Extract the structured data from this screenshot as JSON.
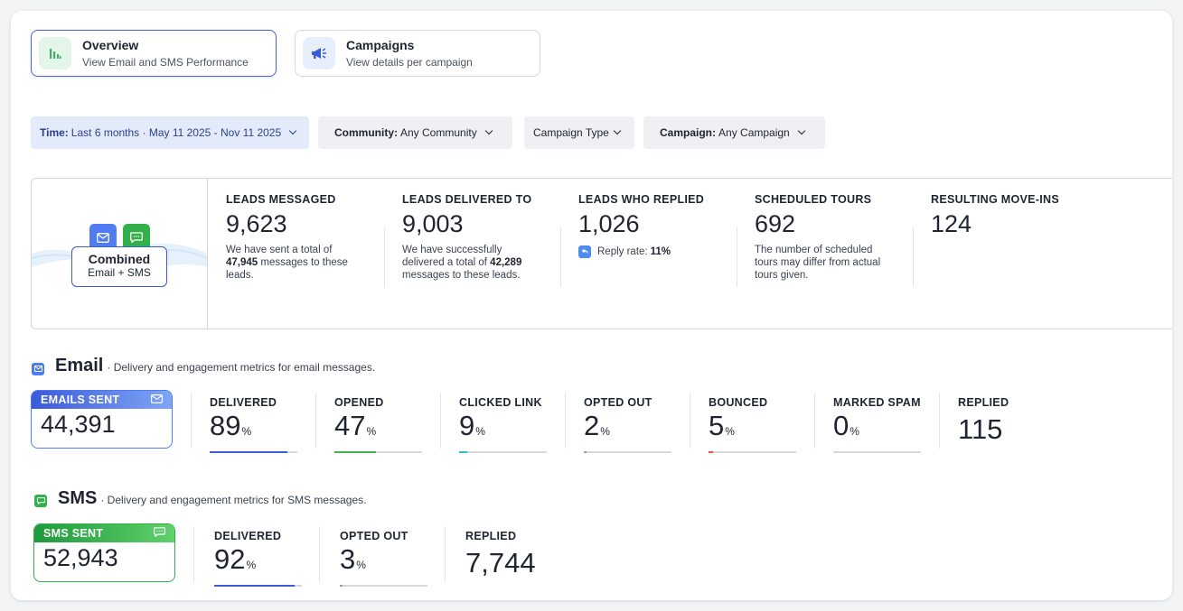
{
  "tabs": [
    {
      "title": "Overview",
      "subtitle": "View Email and SMS Performance",
      "icon": "bar-chart-icon",
      "active": true
    },
    {
      "title": "Campaigns",
      "subtitle": "View details per campaign",
      "icon": "megaphone-icon",
      "active": false
    }
  ],
  "filters": {
    "time": {
      "label": "Time:",
      "value": "Last 6 months · May 11 2025 - Nov 11 2025"
    },
    "community": {
      "label": "Community:",
      "value": "Any Community"
    },
    "campaign_type": {
      "value": "Campaign Type"
    },
    "campaign": {
      "label": "Campaign:",
      "value": "Any Campaign"
    }
  },
  "summary": {
    "combined_title": "Combined",
    "combined_sub": "Email + SMS",
    "leads_messaged": {
      "label": "LEADS MESSAGED",
      "value": "9,623",
      "desc_a": "We have sent a total of ",
      "desc_b": "47,945",
      "desc_c": " messages to these leads."
    },
    "leads_delivered": {
      "label": "LEADS DELIVERED TO",
      "value": "9,003",
      "desc_a": "We have successfully delivered a total of ",
      "desc_b": "42,289",
      "desc_c": " messages to these leads."
    },
    "leads_replied": {
      "label": "LEADS WHO REPLIED",
      "value": "1,026",
      "reply_label": "Reply rate: ",
      "reply_value": "11%"
    },
    "scheduled_tours": {
      "label": "SCHEDULED TOURS",
      "value": "692",
      "desc": "The number of scheduled tours may differ from actual tours given."
    },
    "move_ins": {
      "label": "RESULTING MOVE-INS",
      "value": "124"
    }
  },
  "email": {
    "title": "Email",
    "desc": "· Delivery and engagement metrics for email messages.",
    "sent_label": "EMAILS SENT",
    "sent_value": "44,391",
    "stats": [
      {
        "label": "DELIVERED",
        "value": "89",
        "pct": "%",
        "fraction": 0.89,
        "color": "#3b5bd9"
      },
      {
        "label": "OPENED",
        "value": "47",
        "pct": "%",
        "fraction": 0.47,
        "color": "#3eb54a"
      },
      {
        "label": "CLICKED LINK",
        "value": "9",
        "pct": "%",
        "fraction": 0.09,
        "color": "#3bb7d6"
      },
      {
        "label": "OPTED OUT",
        "value": "2",
        "pct": "%",
        "fraction": 0.02,
        "color": "#9aa0a8"
      },
      {
        "label": "BOUNCED",
        "value": "5",
        "pct": "%",
        "fraction": 0.05,
        "color": "#e0553e"
      },
      {
        "label": "MARKED SPAM",
        "value": "0",
        "pct": "%",
        "fraction": 0.0,
        "color": "#9aa0a8"
      },
      {
        "label": "REPLIED",
        "value": "115"
      }
    ]
  },
  "sms": {
    "title": "SMS",
    "desc": "· Delivery and engagement metrics for SMS messages.",
    "sent_label": "SMS SENT",
    "sent_value": "52,943",
    "stats": [
      {
        "label": "DELIVERED",
        "value": "92",
        "pct": "%",
        "fraction": 0.92,
        "color": "#3b5bd9"
      },
      {
        "label": "OPTED OUT",
        "value": "3",
        "pct": "%",
        "fraction": 0.03,
        "color": "#9aa0a8"
      },
      {
        "label": "REPLIED",
        "value": "7,744"
      }
    ]
  },
  "colors": {
    "email": "#4f7cf0",
    "sms": "#27b24a",
    "accent": "#4a63d8"
  }
}
